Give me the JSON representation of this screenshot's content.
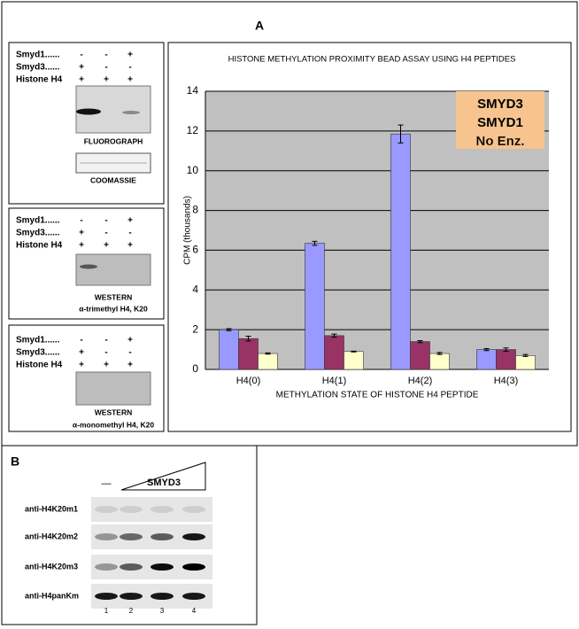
{
  "panel_a": {
    "label": "A",
    "blots": [
      {
        "rows": [
          {
            "label": "Smyd1......",
            "signs": [
              "-",
              "-",
              "+"
            ]
          },
          {
            "label": "Smyd3......",
            "signs": [
              "+",
              "-",
              "-"
            ]
          },
          {
            "label": "Histone H4",
            "signs": [
              "+",
              "+",
              "+"
            ]
          }
        ],
        "captions": [
          "FLUOROGRAPH"
        ],
        "stain": "COOMASSIE"
      },
      {
        "rows": [
          {
            "label": "Smyd1......",
            "signs": [
              "-",
              "-",
              "+"
            ]
          },
          {
            "label": "Smyd3......",
            "signs": [
              "+",
              "-",
              "-"
            ]
          },
          {
            "label": "Histone H4",
            "signs": [
              "+",
              "+",
              "+"
            ]
          }
        ],
        "captions": [
          "WESTERN",
          "α-trimethyl H4, K20"
        ]
      },
      {
        "rows": [
          {
            "label": "Smyd1......",
            "signs": [
              "-",
              "-",
              "+"
            ]
          },
          {
            "label": "Smyd3......",
            "signs": [
              "+",
              "-",
              "-"
            ]
          },
          {
            "label": "Histone H4",
            "signs": [
              "+",
              "+",
              "+"
            ]
          }
        ],
        "captions": [
          "WESTERN",
          "α-monomethyl H4, K20"
        ]
      }
    ]
  },
  "chart_data": {
    "type": "bar",
    "title": "HISTONE METHYLATION PROXIMITY BEAD ASSAY USING H4 PEPTIDES",
    "x_label": "METHYLATION STATE OF HISTONE H4 PEPTIDE",
    "y_label": "CPM (thousands)",
    "categories": [
      "H4(0)",
      "H4(1)",
      "H4(2)",
      "H4(3)"
    ],
    "series": [
      {
        "name": "SMYD3",
        "color": "#9999ff",
        "values": [
          2.0,
          6.35,
          11.85,
          1.0
        ],
        "errors": [
          0.05,
          0.1,
          0.45,
          0.05
        ]
      },
      {
        "name": "SMYD1",
        "color": "#993366",
        "values": [
          1.55,
          1.7,
          1.4,
          1.0
        ],
        "errors": [
          0.12,
          0.08,
          0.05,
          0.08
        ]
      },
      {
        "name": "No Enz.",
        "color": "#ffffcc",
        "values": [
          0.8,
          0.9,
          0.8,
          0.7
        ],
        "errors": [
          0.03,
          0.02,
          0.05,
          0.05
        ]
      }
    ],
    "ylim": [
      0,
      14
    ],
    "yticks": [
      0,
      2,
      4,
      6,
      8,
      10,
      12,
      14
    ],
    "grid": true,
    "legend": "top-right",
    "legend_background": "#f7c38f"
  },
  "panel_b": {
    "label": "B",
    "treatment": "SMYD3",
    "control_mark": "—",
    "rows": [
      "anti-H4K20m1",
      "anti-H4K20m2",
      "anti-H4K20m3",
      "anti-H4panKm"
    ],
    "lanes": [
      "1",
      "2",
      "3",
      "4"
    ]
  }
}
